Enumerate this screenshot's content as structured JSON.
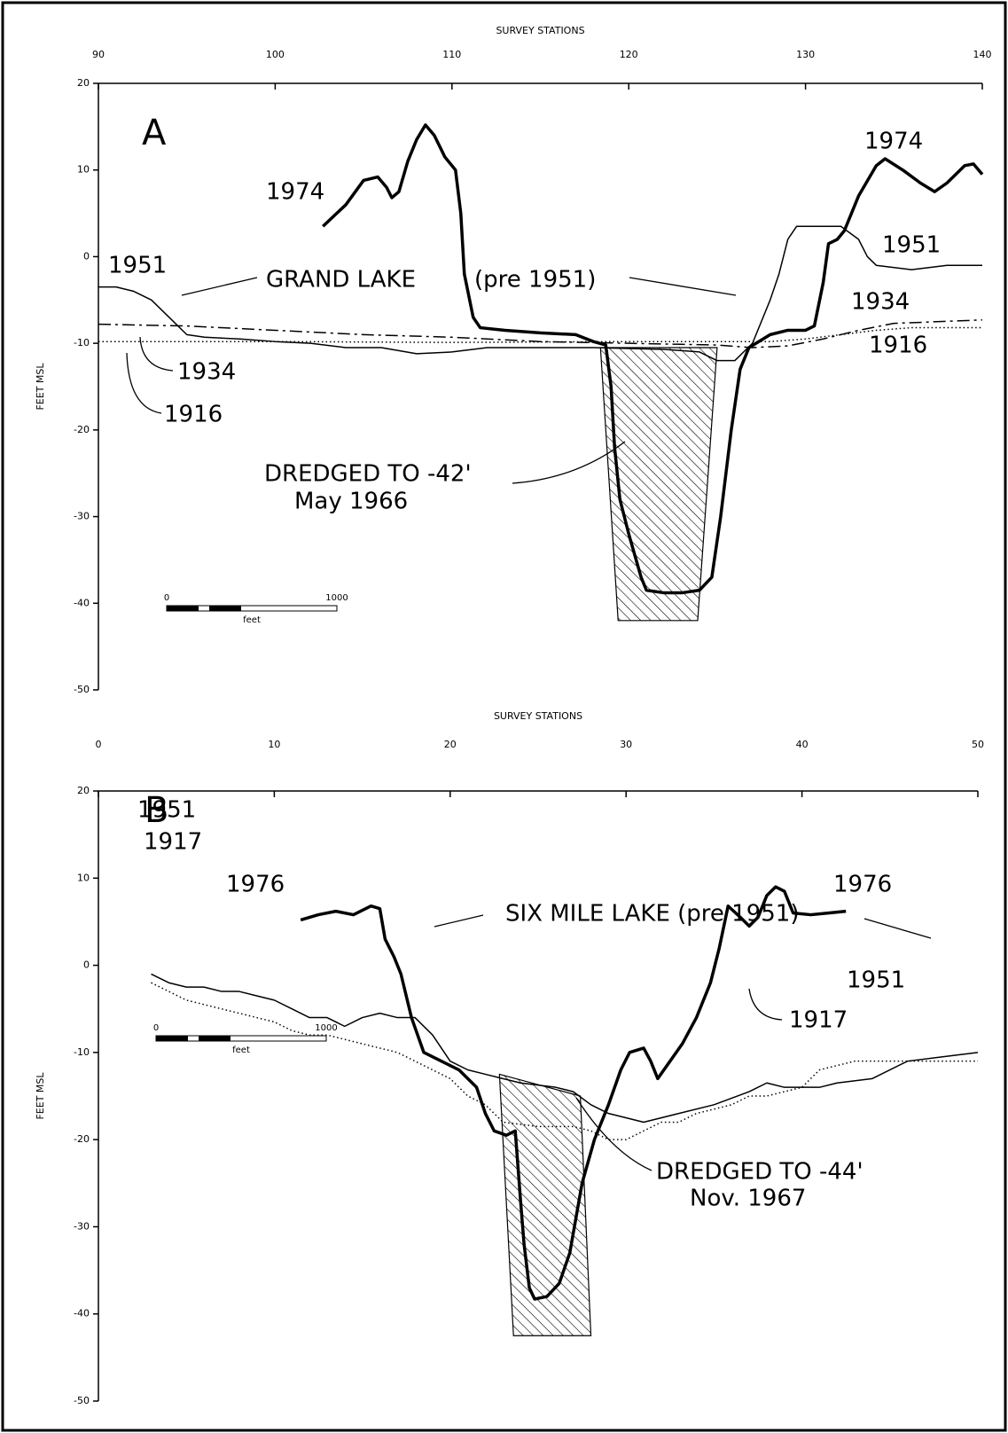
{
  "chart_data": [
    {
      "type": "line",
      "x_label": "SURVEY STATIONS",
      "y_label": "FEET MSL",
      "xlim": [
        90,
        140
      ],
      "xticks": [
        90,
        100,
        110,
        120,
        130,
        140
      ],
      "ylim": [
        -50,
        20
      ],
      "yticks": [
        20,
        10,
        0,
        -10,
        -20,
        -30,
        -40,
        -50
      ],
      "annotations": [
        "A",
        "GRAND LAKE",
        "(pre 1951)",
        "DREDGED TO -42'",
        "May 1966"
      ],
      "scale_bar": {
        "start": 0,
        "end": 1000,
        "unit": "feet"
      },
      "dredged": {
        "x": [
          118.4,
          125,
          123.9,
          119.4
        ],
        "y": [
          -10.5,
          -10.5,
          -42,
          -42
        ]
      },
      "series": [
        {
          "name": "1974",
          "color": "#000",
          "line_style": "thick",
          "x": [
            102.7,
            104,
            105,
            105.8,
            106.3,
            106.6,
            107,
            107.5,
            108,
            108.5,
            109,
            109.6,
            110.2,
            110.5,
            110.7,
            111.2,
            111.6,
            113,
            115,
            117,
            118,
            118.7,
            119,
            119.2,
            119.5,
            120,
            120.7,
            121,
            122,
            123,
            124,
            124.7,
            125.2,
            125.8,
            126.3,
            126.8,
            128,
            129,
            130,
            130.5,
            131,
            131.3,
            131.8,
            132.2,
            133,
            134,
            134.5,
            135.5,
            136.5,
            137.3,
            138,
            139,
            139.5,
            140
          ],
          "values": [
            3.5,
            6,
            8.8,
            9.2,
            8,
            6.8,
            7.5,
            11,
            13.5,
            15.2,
            14,
            11.5,
            10,
            5,
            -2,
            -7,
            -8.2,
            -8.5,
            -8.8,
            -9,
            -9.8,
            -10.2,
            -15,
            -22,
            -28,
            -32,
            -37,
            -38.5,
            -38.8,
            -38.8,
            -38.5,
            -37,
            -30,
            -20,
            -13,
            -10.5,
            -9,
            -8.5,
            -8.5,
            -8,
            -3,
            1.5,
            2,
            3,
            7,
            10.5,
            11.3,
            10,
            8.5,
            7.5,
            8.5,
            10.5,
            10.7,
            9.5
          ]
        },
        {
          "name": "1951",
          "color": "#000",
          "line_style": "thin",
          "x": [
            90,
            91,
            92,
            93,
            94,
            95,
            96,
            98,
            100,
            102,
            104,
            106,
            108,
            110,
            112,
            115,
            118,
            122,
            124,
            125,
            126,
            127,
            128,
            128.5,
            129,
            129.5,
            132,
            133,
            133.5,
            134,
            136,
            138,
            140
          ],
          "values": [
            -3.5,
            -3.5,
            -4,
            -5,
            -7,
            -9,
            -9.3,
            -9.5,
            -9.8,
            -10,
            -10.5,
            -10.5,
            -11.2,
            -11,
            -10.5,
            -10.5,
            -10.5,
            -10.7,
            -11,
            -12,
            -12,
            -10,
            -5,
            -2,
            2,
            3.5,
            3.5,
            2,
            0,
            -1,
            -1.5,
            -1,
            -1
          ]
        },
        {
          "name": "1934",
          "color": "#000",
          "line_style": "dashed",
          "x": [
            90,
            95,
            100,
            105,
            110,
            115,
            120,
            125,
            127,
            129,
            131,
            133,
            135,
            140
          ],
          "values": [
            -7.8,
            -8,
            -8.5,
            -9,
            -9.3,
            -9.8,
            -10,
            -10.2,
            -10.5,
            -10.3,
            -9.5,
            -8.5,
            -7.7,
            -7.3
          ]
        },
        {
          "name": "1916",
          "color": "#000",
          "line_style": "dotted",
          "x": [
            90,
            100,
            110,
            120,
            125,
            128,
            130,
            132,
            134,
            136,
            140
          ],
          "values": [
            -9.8,
            -9.8,
            -9.9,
            -9.8,
            -9.8,
            -9.8,
            -9.5,
            -9,
            -8.5,
            -8.2,
            -8.2
          ]
        }
      ]
    },
    {
      "type": "line",
      "x_label": "SURVEY STATIONS",
      "y_label": "FEET MSL",
      "xlim": [
        0,
        50
      ],
      "xticks": [
        0,
        10,
        20,
        30,
        40,
        50
      ],
      "ylim": [
        -50,
        20
      ],
      "yticks": [
        20,
        10,
        0,
        -10,
        -20,
        -30,
        -40,
        -50
      ],
      "annotations": [
        "B",
        "SIX MILE LAKE (pre 1951)",
        "DREDGED TO -44'",
        "Nov. 1967"
      ],
      "scale_bar": {
        "start": 0,
        "end": 1000,
        "unit": "feet"
      },
      "dredged": {
        "x": [
          22.8,
          27.4,
          28,
          23.6
        ],
        "y": [
          -12.5,
          -15,
          -42.5,
          -42.5
        ]
      },
      "series": [
        {
          "name": "1976",
          "color": "#000",
          "line_style": "thick",
          "x": [
            11.5,
            12.5,
            13.5,
            14.5,
            15.5,
            16,
            16.3,
            16.8,
            17.2,
            17.8,
            18.5,
            19.5,
            20.5,
            21.5,
            22,
            22.5,
            23.2,
            23.7,
            24,
            24.2,
            24.5,
            24.8,
            25.5,
            26.2,
            26.8,
            27.5,
            28.2,
            29,
            29.7,
            30.2,
            31,
            31.4,
            31.8,
            32.5,
            33.2,
            34,
            34.8,
            35.3,
            35.8,
            36.5,
            37,
            37.5,
            38,
            38.5,
            39,
            39.5,
            40.5,
            41.5,
            42.5
          ],
          "values": [
            5.2,
            5.8,
            6.2,
            5.8,
            6.8,
            6.5,
            3,
            1,
            -1,
            -6,
            -10,
            -11,
            -12,
            -14,
            -17,
            -19,
            -19.5,
            -19,
            -27,
            -32,
            -37,
            -38.3,
            -38,
            -36.5,
            -33,
            -25,
            -20,
            -16,
            -12,
            -10,
            -9.5,
            -11,
            -13,
            -11,
            -9,
            -6,
            -2,
            2,
            6.8,
            5.5,
            4.5,
            5.5,
            8,
            9,
            8.5,
            6,
            5.8,
            6,
            6.2
          ]
        },
        {
          "name": "1951",
          "color": "#000",
          "line_style": "thin",
          "x": [
            3,
            4,
            5,
            6,
            7,
            8,
            9,
            10,
            11,
            12,
            13,
            14,
            15,
            16,
            17,
            18,
            19,
            20,
            21,
            22,
            23,
            24,
            26,
            27,
            28,
            29,
            31,
            33,
            35,
            37,
            38,
            39,
            40,
            41,
            42,
            44,
            46,
            48,
            50
          ],
          "values": [
            -1,
            -2,
            -2.5,
            -2.5,
            -3,
            -3,
            -3.5,
            -4,
            -5,
            -6,
            -6,
            -7,
            -6,
            -5.5,
            -6,
            -6,
            -8,
            -11,
            -12,
            -12.5,
            -13,
            -13.5,
            -14,
            -14.5,
            -16,
            -17,
            -18,
            -17,
            -16,
            -14.5,
            -13.5,
            -14,
            -14,
            -14,
            -13.5,
            -13,
            -11,
            -10.5,
            -10
          ]
        },
        {
          "name": "1917",
          "color": "#000",
          "line_style": "dotted",
          "x": [
            3,
            4,
            5,
            6,
            7,
            8,
            9,
            10,
            11,
            12,
            13,
            14,
            15,
            16,
            17,
            18,
            19,
            20,
            21,
            22,
            23,
            25,
            27,
            28,
            29,
            30,
            31,
            32,
            33,
            34,
            35,
            36,
            37,
            38,
            39,
            40,
            41,
            42,
            43,
            46,
            48,
            50
          ],
          "values": [
            -2,
            -3,
            -4,
            -4.5,
            -5,
            -5.5,
            -6,
            -6.5,
            -7.5,
            -8,
            -8,
            -8.5,
            -9,
            -9.5,
            -10,
            -11,
            -12,
            -13,
            -15,
            -16,
            -18,
            -18.5,
            -18.5,
            -19,
            -20,
            -20,
            -19,
            -18,
            -18,
            -17,
            -16.5,
            -16,
            -15,
            -15,
            -14.5,
            -14,
            -12,
            -11.5,
            -11,
            -11,
            -11,
            -11
          ]
        }
      ]
    }
  ]
}
